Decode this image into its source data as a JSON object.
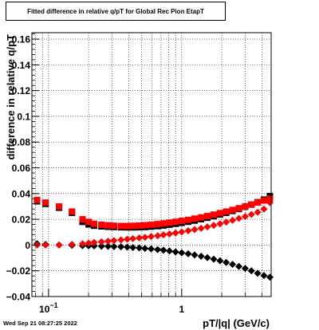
{
  "footer_timestamp": "Wed Sep 21 08:27:25 2022",
  "chart_data": {
    "type": "scatter",
    "title": "Fitted difference in relative q/pT for Global Rec Pion EtapT",
    "xlabel": "pT/|q| (GeV/c)",
    "ylabel": "difference in relative q/pT",
    "x_scale": "log",
    "xlim": [
      0.075,
      4.7
    ],
    "ylim": [
      -0.04,
      0.165
    ],
    "grid": true,
    "legend": "none",
    "yticks": [
      {
        "v": -0.04,
        "label": "−0.04"
      },
      {
        "v": -0.02,
        "label": "−0.02"
      },
      {
        "v": 0,
        "label": "0"
      },
      {
        "v": 0.02,
        "label": "0.02"
      },
      {
        "v": 0.04,
        "label": "0.04"
      },
      {
        "v": 0.06,
        "label": "0.06"
      },
      {
        "v": 0.08,
        "label": "0.08"
      },
      {
        "v": 0.1,
        "label": "0.1"
      },
      {
        "v": 0.12,
        "label": "0.12"
      },
      {
        "v": 0.14,
        "label": "0.14"
      },
      {
        "v": 0.16,
        "label": "0.16"
      }
    ],
    "xticks": [
      {
        "v": 0.1,
        "base": "10",
        "exp": "−1"
      },
      {
        "v": 1,
        "base": "1",
        "exp": ""
      }
    ],
    "series": [
      {
        "marker": "square",
        "color": "#000000",
        "x": [
          0.082,
          0.095,
          0.12,
          0.15,
          0.18,
          0.2,
          0.22,
          0.25,
          0.28,
          0.31,
          0.35,
          0.39,
          0.43,
          0.48,
          0.53,
          0.59,
          0.66,
          0.73,
          0.81,
          0.9,
          1.0,
          1.12,
          1.25,
          1.4,
          1.56,
          1.74,
          1.94,
          2.16,
          2.41,
          2.69,
          3.0,
          3.34,
          3.72,
          4.15,
          4.6
        ],
        "y": [
          0.034,
          0.032,
          0.029,
          0.025,
          0.018,
          0.016,
          0.015,
          0.0145,
          0.0142,
          0.014,
          0.0138,
          0.0137,
          0.0137,
          0.0138,
          0.014,
          0.0143,
          0.0147,
          0.0152,
          0.0158,
          0.0165,
          0.0172,
          0.0181,
          0.019,
          0.0201,
          0.0212,
          0.0224,
          0.0237,
          0.025,
          0.0265,
          0.028,
          0.0297,
          0.0314,
          0.0333,
          0.0353,
          0.038
        ]
      },
      {
        "marker": "square",
        "color": "#ff0000",
        "x": [
          0.082,
          0.095,
          0.12,
          0.15,
          0.18,
          0.2,
          0.22,
          0.25,
          0.28,
          0.31,
          0.35,
          0.39,
          0.43,
          0.48,
          0.53,
          0.59,
          0.66,
          0.73,
          0.81,
          0.9,
          1.0,
          1.12,
          1.25,
          1.4,
          1.56,
          1.74,
          1.94,
          2.16,
          2.41,
          2.69,
          3.0,
          3.34,
          3.72,
          4.15,
          4.6
        ],
        "y": [
          0.035,
          0.033,
          0.03,
          0.026,
          0.02,
          0.018,
          0.0165,
          0.0158,
          0.0153,
          0.015,
          0.0148,
          0.0148,
          0.0149,
          0.0151,
          0.0154,
          0.0158,
          0.0163,
          0.0168,
          0.0174,
          0.0181,
          0.0188,
          0.0196,
          0.0205,
          0.0215,
          0.0225,
          0.0236,
          0.0248,
          0.026,
          0.0273,
          0.0286,
          0.03,
          0.0315,
          0.033,
          0.0346,
          0.036
        ]
      },
      {
        "marker": "diamond",
        "color": "#000000",
        "x": [
          0.082,
          0.095,
          0.12,
          0.15,
          0.18,
          0.2,
          0.22,
          0.25,
          0.28,
          0.31,
          0.35,
          0.39,
          0.43,
          0.48,
          0.53,
          0.59,
          0.66,
          0.73,
          0.81,
          0.9,
          1.0,
          1.12,
          1.25,
          1.4,
          1.56,
          1.74,
          1.94,
          2.16,
          2.41,
          2.69,
          3.0,
          3.34,
          3.72,
          4.15,
          4.6
        ],
        "y": [
          0.001,
          0.0005,
          0.0,
          -0.0002,
          -0.0005,
          -0.0006,
          -0.0007,
          -0.0009,
          -0.001,
          -0.0012,
          -0.0014,
          -0.0016,
          -0.0019,
          -0.0022,
          -0.0026,
          -0.003,
          -0.0035,
          -0.004,
          -0.0046,
          -0.0053,
          -0.006,
          -0.0068,
          -0.0077,
          -0.0087,
          -0.0098,
          -0.011,
          -0.0122,
          -0.0135,
          -0.015,
          -0.0166,
          -0.0182,
          -0.02,
          -0.022,
          -0.0237,
          -0.025
        ]
      },
      {
        "marker": "diamond",
        "color": "#ff0000",
        "x": [
          0.082,
          0.095,
          0.12,
          0.15,
          0.18,
          0.2,
          0.22,
          0.25,
          0.28,
          0.31,
          0.35,
          0.39,
          0.43,
          0.48,
          0.53,
          0.59,
          0.66,
          0.73,
          0.81,
          0.9,
          1.0,
          1.12,
          1.25,
          1.4,
          1.56,
          1.74,
          1.94,
          2.16,
          2.41,
          2.69,
          3.0,
          3.34,
          3.72,
          4.15,
          4.6
        ],
        "y": [
          0.0,
          0.0,
          0.0,
          0.0005,
          0.001,
          0.0015,
          0.002,
          0.0025,
          0.003,
          0.0035,
          0.004,
          0.0045,
          0.005,
          0.0055,
          0.006,
          0.0066,
          0.0072,
          0.0079,
          0.0086,
          0.0094,
          0.0102,
          0.0111,
          0.012,
          0.013,
          0.0141,
          0.0153,
          0.0165,
          0.0178,
          0.0192,
          0.0207,
          0.0222,
          0.0238,
          0.0255,
          0.028,
          0.033
        ]
      }
    ]
  }
}
